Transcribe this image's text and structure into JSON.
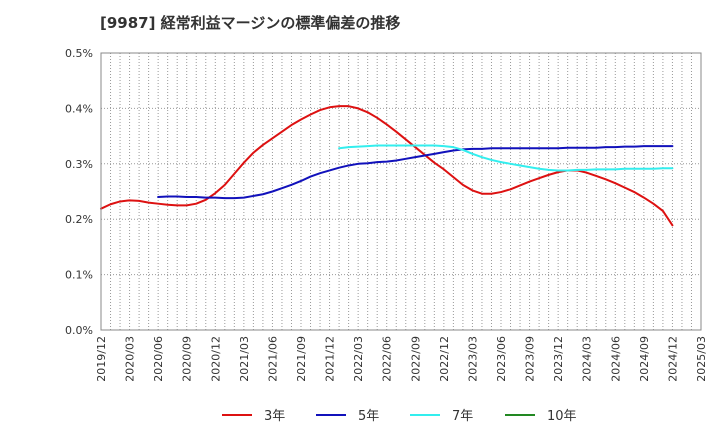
{
  "chart_data": {
    "type": "line",
    "title": "[9987]  経常利益マージンの標準偏差の推移",
    "xlabel": "",
    "ylabel": "",
    "ylim": [
      0,
      0.5
    ],
    "y_ticks": [
      0,
      0.1,
      0.2,
      0.3,
      0.4,
      0.5
    ],
    "y_tick_labels": [
      "0.0%",
      "0.1%",
      "0.2%",
      "0.3%",
      "0.4%",
      "0.5%"
    ],
    "x_tick_labels": [
      "2019/12",
      "2020/03",
      "2020/06",
      "2020/09",
      "2020/12",
      "2021/03",
      "2021/06",
      "2021/09",
      "2021/12",
      "2022/03",
      "2022/06",
      "2022/09",
      "2022/12",
      "2023/03",
      "2023/06",
      "2023/09",
      "2023/12",
      "2024/03",
      "2024/06",
      "2024/09",
      "2024/12",
      "2025/03"
    ],
    "grid": true,
    "legend_position": "bottom",
    "series": [
      {
        "name": "3年",
        "color": "#dd1111",
        "x": [
          "2019/12",
          "2020/01",
          "2020/02",
          "2020/03",
          "2020/04",
          "2020/05",
          "2020/06",
          "2020/07",
          "2020/08",
          "2020/09",
          "2020/10",
          "2020/11",
          "2020/12",
          "2021/01",
          "2021/02",
          "2021/03",
          "2021/04",
          "2021/05",
          "2021/06",
          "2021/07",
          "2021/08",
          "2021/09",
          "2021/10",
          "2021/11",
          "2021/12",
          "2022/01",
          "2022/02",
          "2022/03",
          "2022/04",
          "2022/05",
          "2022/06",
          "2022/07",
          "2022/08",
          "2022/09",
          "2022/10",
          "2022/11",
          "2022/12",
          "2023/01",
          "2023/02",
          "2023/03",
          "2023/04",
          "2023/05",
          "2023/06",
          "2023/07",
          "2023/08",
          "2023/09",
          "2023/10",
          "2023/11",
          "2023/12",
          "2024/01",
          "2024/02",
          "2024/03",
          "2024/04",
          "2024/05",
          "2024/06",
          "2024/07",
          "2024/08",
          "2024/09",
          "2024/10",
          "2024/11",
          "2024/12"
        ],
        "values": [
          0.219,
          0.227,
          0.232,
          0.234,
          0.233,
          0.23,
          0.228,
          0.226,
          0.225,
          0.225,
          0.228,
          0.235,
          0.247,
          0.262,
          0.282,
          0.302,
          0.32,
          0.334,
          0.346,
          0.358,
          0.37,
          0.38,
          0.389,
          0.397,
          0.402,
          0.404,
          0.404,
          0.4,
          0.393,
          0.383,
          0.371,
          0.358,
          0.344,
          0.33,
          0.316,
          0.302,
          0.29,
          0.276,
          0.262,
          0.252,
          0.246,
          0.246,
          0.249,
          0.254,
          0.261,
          0.268,
          0.274,
          0.28,
          0.285,
          0.288,
          0.288,
          0.284,
          0.278,
          0.272,
          0.265,
          0.257,
          0.249,
          0.239,
          0.228,
          0.215,
          0.189
        ]
      },
      {
        "name": "5年",
        "color": "#1111bb",
        "x": [
          "2020/06",
          "2020/07",
          "2020/08",
          "2020/09",
          "2020/10",
          "2020/11",
          "2020/12",
          "2021/01",
          "2021/02",
          "2021/03",
          "2021/04",
          "2021/05",
          "2021/06",
          "2021/07",
          "2021/08",
          "2021/09",
          "2021/10",
          "2021/11",
          "2021/12",
          "2022/01",
          "2022/02",
          "2022/03",
          "2022/04",
          "2022/05",
          "2022/06",
          "2022/07",
          "2022/08",
          "2022/09",
          "2022/10",
          "2022/11",
          "2022/12",
          "2023/01",
          "2023/02",
          "2023/03",
          "2023/04",
          "2023/05",
          "2023/06",
          "2023/07",
          "2023/08",
          "2023/09",
          "2023/10",
          "2023/11",
          "2023/12",
          "2024/01",
          "2024/02",
          "2024/03",
          "2024/04",
          "2024/05",
          "2024/06",
          "2024/07",
          "2024/08",
          "2024/09",
          "2024/10",
          "2024/11",
          "2024/12"
        ],
        "values": [
          0.24,
          0.241,
          0.241,
          0.24,
          0.24,
          0.239,
          0.239,
          0.238,
          0.238,
          0.239,
          0.242,
          0.245,
          0.25,
          0.256,
          0.262,
          0.269,
          0.277,
          0.283,
          0.288,
          0.293,
          0.297,
          0.3,
          0.301,
          0.303,
          0.304,
          0.306,
          0.309,
          0.312,
          0.315,
          0.318,
          0.321,
          0.324,
          0.326,
          0.327,
          0.327,
          0.328,
          0.328,
          0.328,
          0.328,
          0.328,
          0.328,
          0.328,
          0.328,
          0.329,
          0.329,
          0.329,
          0.329,
          0.33,
          0.33,
          0.331,
          0.331,
          0.332,
          0.332,
          0.332,
          0.332
        ]
      },
      {
        "name": "7年",
        "color": "#33eeee",
        "x": [
          "2022/01",
          "2022/02",
          "2022/03",
          "2022/04",
          "2022/05",
          "2022/06",
          "2022/07",
          "2022/08",
          "2022/09",
          "2022/10",
          "2022/11",
          "2022/12",
          "2023/01",
          "2023/02",
          "2023/03",
          "2023/04",
          "2023/05",
          "2023/06",
          "2023/07",
          "2023/08",
          "2023/09",
          "2023/10",
          "2023/11",
          "2023/12",
          "2024/01",
          "2024/02",
          "2024/03",
          "2024/04",
          "2024/05",
          "2024/06",
          "2024/07",
          "2024/08",
          "2024/09",
          "2024/10",
          "2024/11",
          "2024/12"
        ],
        "values": [
          0.328,
          0.33,
          0.331,
          0.332,
          0.333,
          0.333,
          0.333,
          0.333,
          0.333,
          0.333,
          0.333,
          0.332,
          0.33,
          0.325,
          0.318,
          0.312,
          0.307,
          0.303,
          0.3,
          0.297,
          0.294,
          0.291,
          0.289,
          0.288,
          0.288,
          0.289,
          0.289,
          0.29,
          0.29,
          0.29,
          0.291,
          0.291,
          0.291,
          0.291,
          0.292,
          0.292
        ]
      },
      {
        "name": "10年",
        "color": "#228822",
        "x": [],
        "values": []
      }
    ]
  }
}
